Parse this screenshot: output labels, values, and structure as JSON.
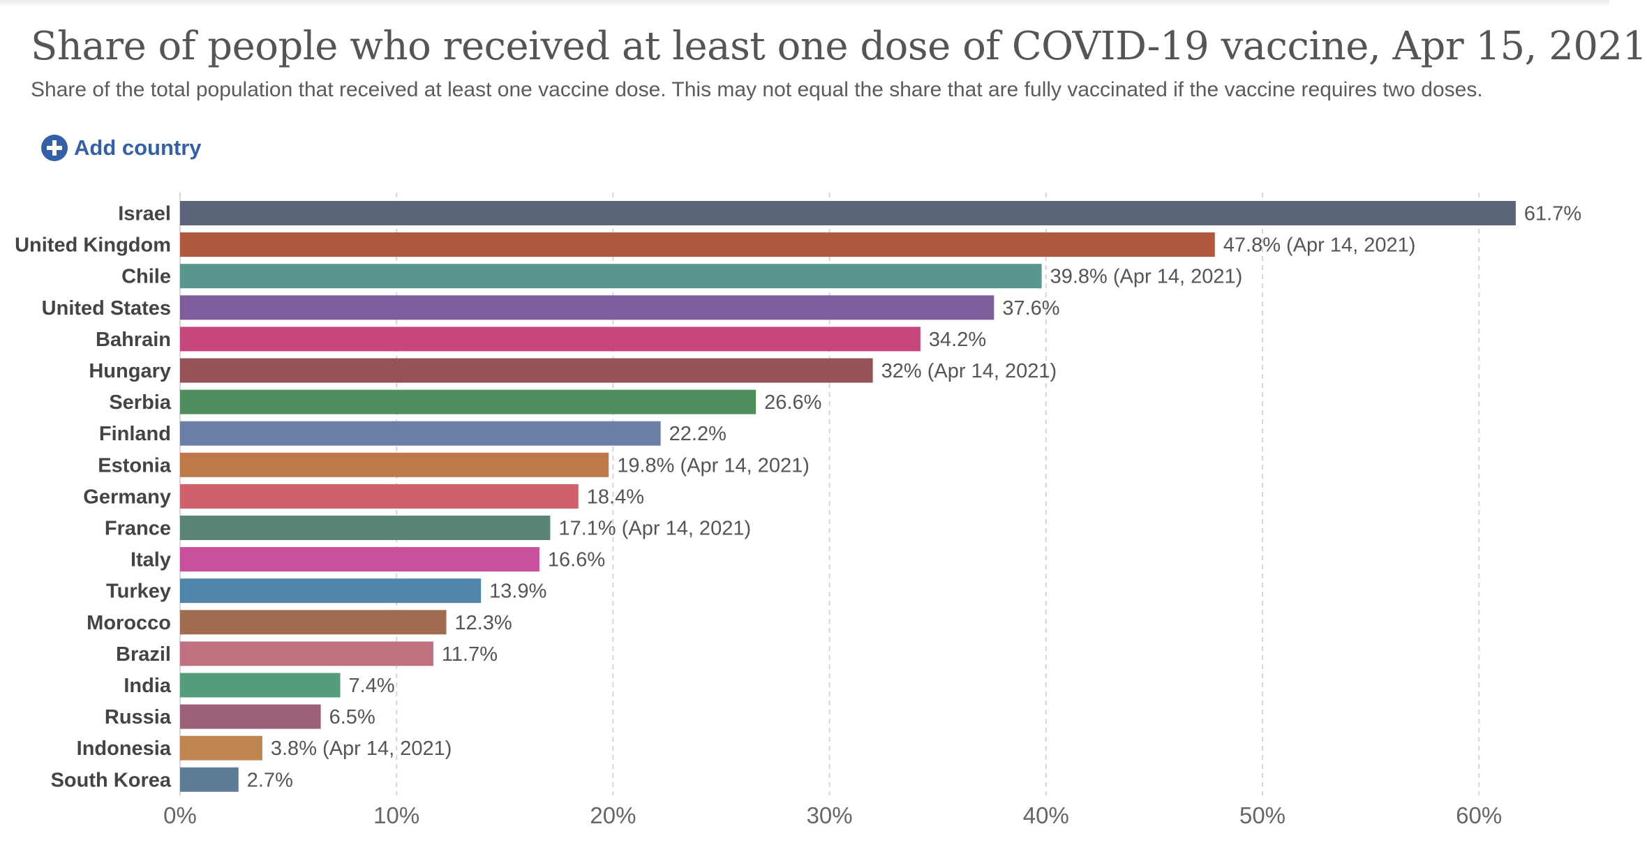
{
  "header": {
    "title": "Share of people who received at least one dose of COVID-19 vaccine, Apr 15, 2021",
    "subtitle": "Share of the total population that received at least one vaccine dose. This may not equal the share that are fully vaccinated if the vaccine requires two doses."
  },
  "controls": {
    "add_country_label": "Add country",
    "add_icon": "plus-circle-icon",
    "accent_color": "#3360a9"
  },
  "chart_data": {
    "type": "bar",
    "orientation": "horizontal",
    "title": "Share of people who received at least one dose of COVID-19 vaccine, Apr 15, 2021",
    "xlabel": "",
    "ylabel": "",
    "xlim": [
      0,
      63
    ],
    "xticks": [
      0,
      10,
      20,
      30,
      40,
      50,
      60
    ],
    "tick_labels": [
      "0%",
      "10%",
      "20%",
      "30%",
      "40%",
      "50%",
      "60%"
    ],
    "grid": "vertical dashed",
    "categories": [
      "Israel",
      "United Kingdom",
      "Chile",
      "United States",
      "Bahrain",
      "Hungary",
      "Serbia",
      "Finland",
      "Estonia",
      "Germany",
      "France",
      "Italy",
      "Turkey",
      "Morocco",
      "Brazil",
      "India",
      "Russia",
      "Indonesia",
      "South Korea"
    ],
    "values": [
      61.7,
      47.8,
      39.8,
      37.6,
      34.2,
      32,
      26.6,
      22.2,
      19.8,
      18.4,
      17.1,
      16.6,
      13.9,
      12.3,
      11.7,
      7.4,
      6.5,
      3.8,
      2.7
    ],
    "value_labels": [
      "61.7%",
      "47.8% (Apr 14, 2021)",
      "39.8% (Apr 14, 2021)",
      "37.6%",
      "34.2%",
      "32% (Apr 14, 2021)",
      "26.6%",
      "22.2%",
      "19.8% (Apr 14, 2021)",
      "18.4%",
      "17.1% (Apr 14, 2021)",
      "16.6%",
      "13.9%",
      "12.3%",
      "11.7%",
      "7.4%",
      "6.5%",
      "3.8% (Apr 14, 2021)",
      "2.7%"
    ],
    "colors": [
      "#5b6478",
      "#b0583f",
      "#59968e",
      "#7f5c9b",
      "#c7477c",
      "#955357",
      "#4f8f5d",
      "#6b7ea5",
      "#be784a",
      "#d0606b",
      "#5a8575",
      "#c9509a",
      "#4f85a9",
      "#a06b50",
      "#c0707e",
      "#559d7a",
      "#9b6178",
      "#bf8550",
      "#5d7a97"
    ]
  }
}
